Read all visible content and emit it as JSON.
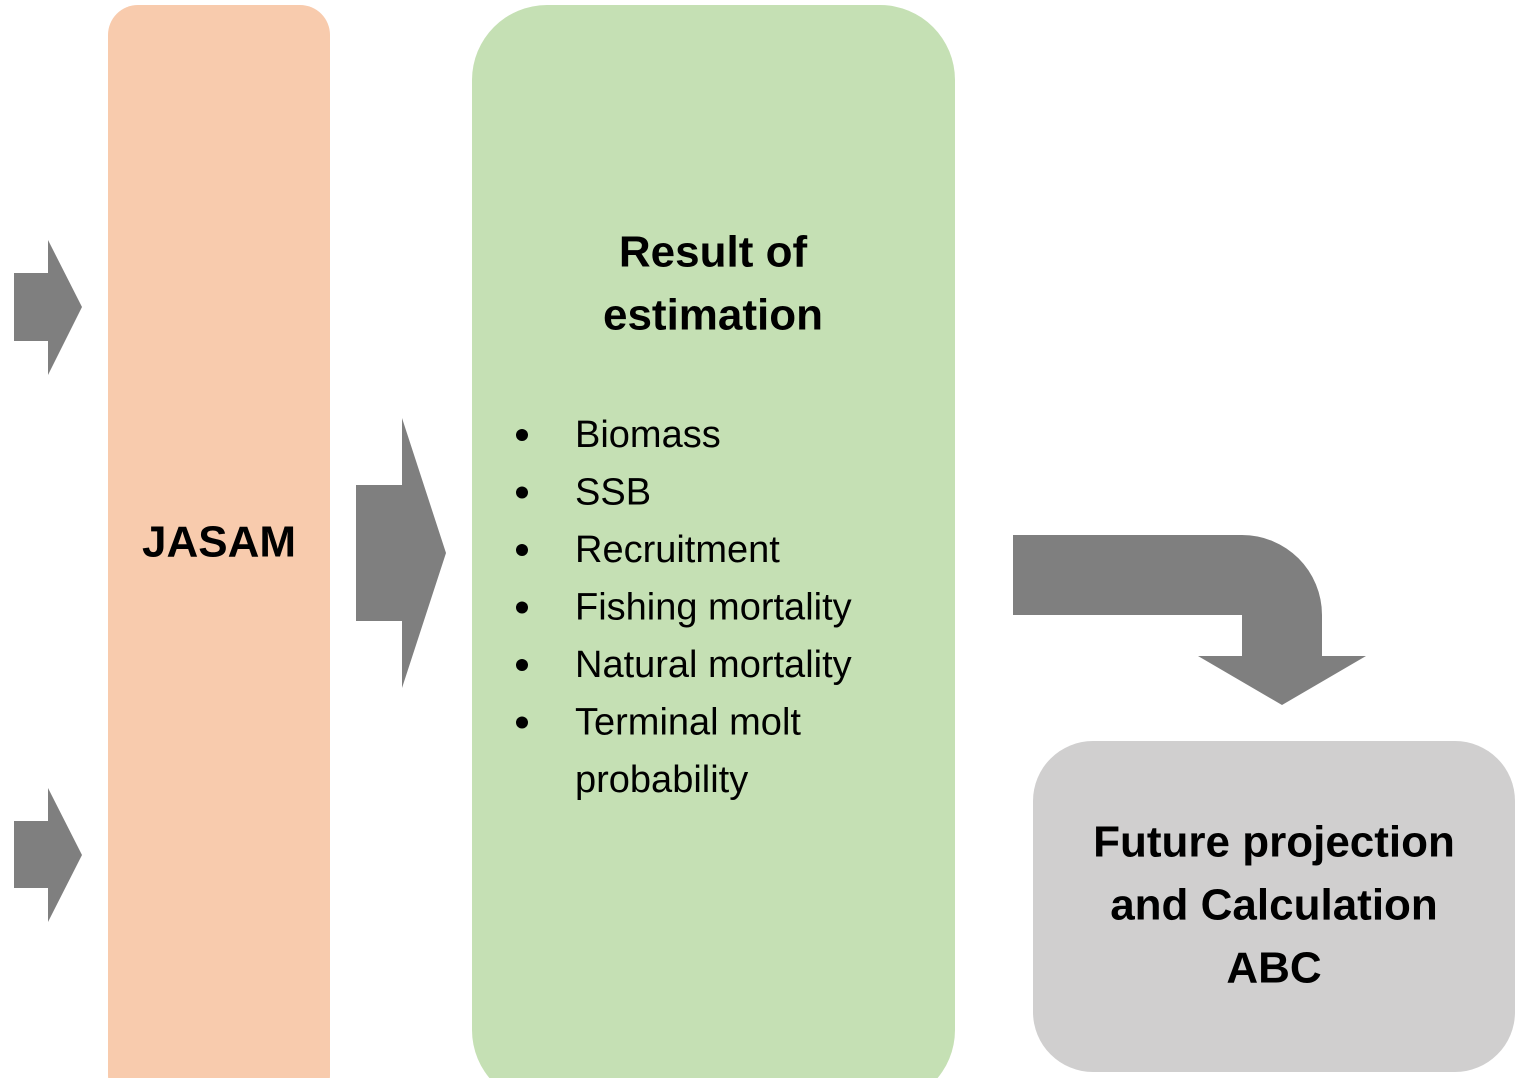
{
  "nodes": [
    {
      "label": [
        "JASAM"
      ]
    },
    {
      "label": [
        "Result of",
        "estimation"
      ],
      "items": [
        [
          "Biomass"
        ],
        [
          "SSB"
        ],
        [
          "Recruitment"
        ],
        [
          "Fishing mortality"
        ],
        [
          "Natural mortality"
        ],
        [
          "Terminal molt",
          "probability"
        ]
      ]
    },
    {
      "label": [
        "Future projection",
        "and Calculation",
        "ABC"
      ]
    }
  ]
}
